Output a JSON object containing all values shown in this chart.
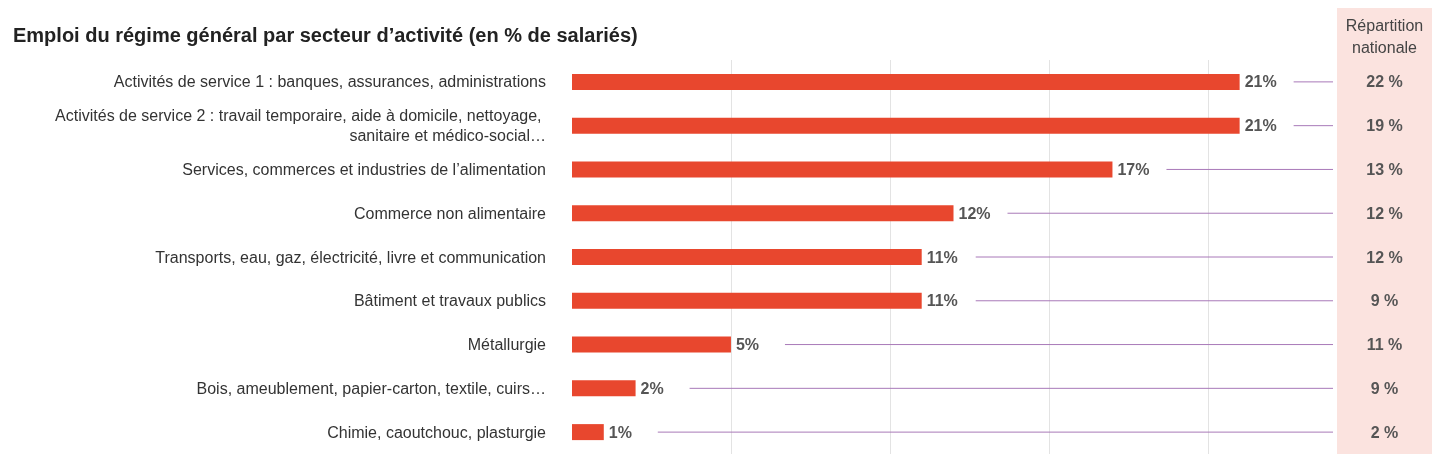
{
  "chart_data": {
    "type": "bar",
    "orientation": "horizontal",
    "title": "Emploi du régime général par secteur d’activité (en % de salariés)",
    "categories": [
      "Activités de service 1 : banques, assurances, administrations",
      "Activités de service 2 : travail temporaire, aide à domicile, nettoyage, sanitaire et médico-social…",
      "Services, commerces et industries de l’alimentation",
      "Commerce non alimentaire",
      "Transports, eau, gaz, électricité, livre et communication",
      "Bâtiment et travaux publics",
      "Métallurgie",
      "Bois, ameublement, papier-carton, textile, cuirs…",
      "Chimie, caoutchouc, plasturgie"
    ],
    "series": [
      {
        "color": "#e8472e",
        "values": [
          21,
          21,
          17,
          12,
          11,
          11,
          5,
          2,
          1
        ],
        "value_labels": [
          "21%",
          "21%",
          "17%",
          "12%",
          "11%",
          "11%",
          "5%",
          "2%",
          "1%"
        ]
      }
    ],
    "annotations": [
      "Répartition nationale",
      "22 %",
      "19 %",
      "13 %",
      "12 %",
      "12 %",
      "9 %",
      "11 %",
      "9 %",
      "2 %"
    ],
    "xlim": [
      0,
      24
    ],
    "xticks": [
      {
        "value": 5,
        "label": null
      },
      {
        "value": 10,
        "label": null
      },
      {
        "value": 15,
        "label": null
      },
      {
        "value": 20,
        "label": null
      }
    ],
    "grid": "x",
    "tick_labels": "y"
  }
}
